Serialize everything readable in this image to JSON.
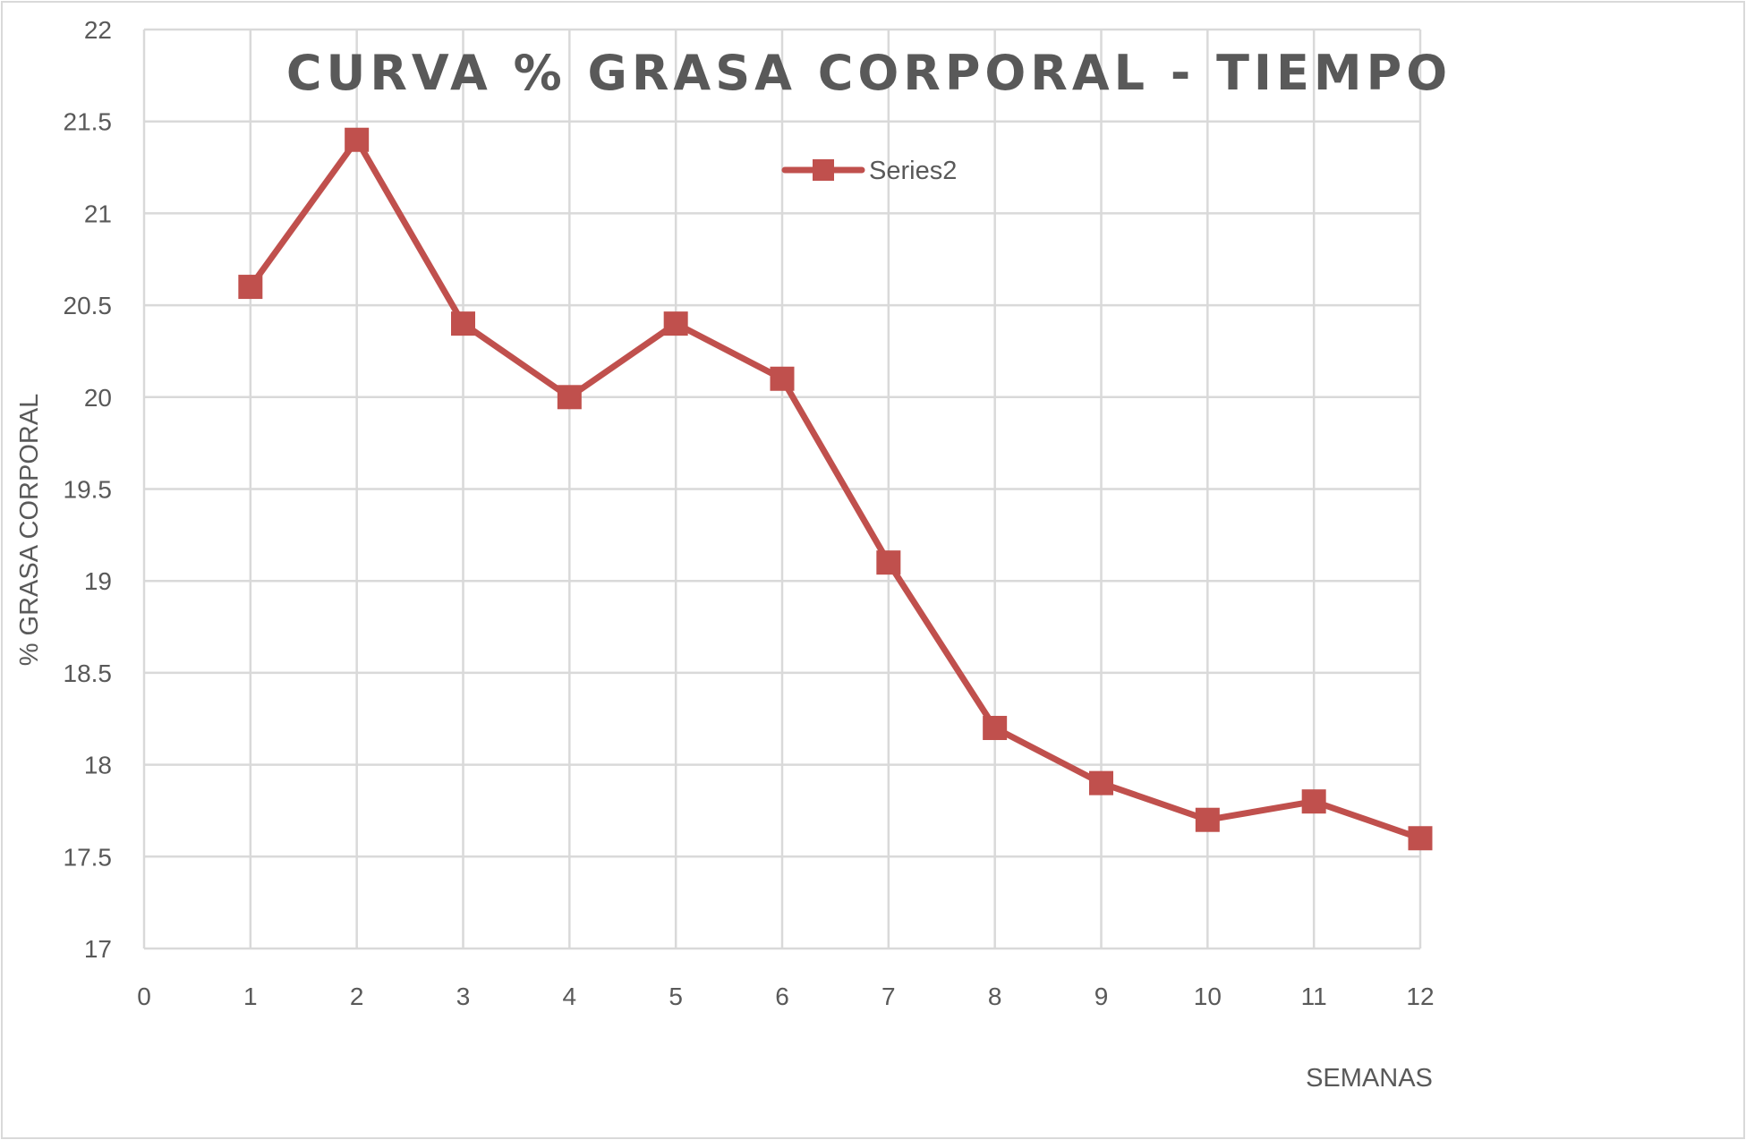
{
  "chart_data": {
    "type": "line",
    "title": "CURVA % GRASA CORPORAL - TIEMPO",
    "xlabel": "SEMANAS",
    "ylabel": "% GRASA CORPORAL",
    "x": [
      1,
      2,
      3,
      4,
      5,
      6,
      7,
      8,
      9,
      10,
      11,
      12
    ],
    "series": [
      {
        "name": "Series2",
        "color": "#c0504d",
        "marker": "square",
        "values": [
          20.6,
          21.4,
          20.4,
          20.0,
          20.4,
          20.1,
          19.1,
          18.2,
          17.9,
          17.7,
          17.8,
          17.6
        ]
      }
    ],
    "xlim": [
      0,
      12
    ],
    "ylim": [
      17,
      22
    ],
    "x_ticks": [
      "0",
      "1",
      "2",
      "3",
      "4",
      "5",
      "6",
      "7",
      "8",
      "9",
      "10",
      "11",
      "12"
    ],
    "y_ticks": [
      "17",
      "17.5",
      "18",
      "18.5",
      "19",
      "19.5",
      "20",
      "20.5",
      "21",
      "21.5",
      "22"
    ],
    "grid": true,
    "legend_position": "top-center-inside"
  },
  "colors": {
    "series": "#c0504d",
    "grid": "#d9d9d9",
    "text": "#595959",
    "border": "#d9d9d9"
  }
}
